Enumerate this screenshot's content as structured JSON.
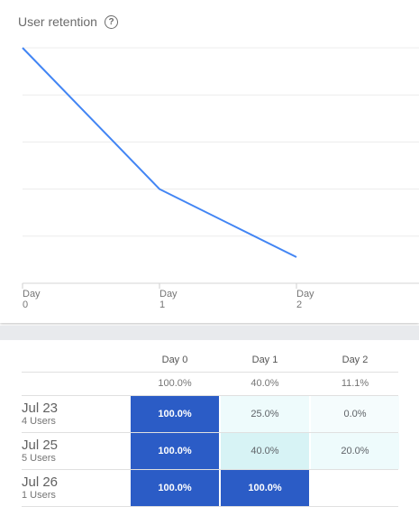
{
  "card": {
    "title": "User retention",
    "help_icon": "help-circle-icon"
  },
  "chart_data": {
    "type": "line",
    "title": "User retention",
    "x": [
      "Day 0",
      "Day 1",
      "Day 2"
    ],
    "x_tick_lines": [
      [
        "Day",
        "0"
      ],
      [
        "Day",
        "1"
      ],
      [
        "Day",
        "2"
      ]
    ],
    "values": [
      100,
      40,
      11.1
    ],
    "ylim": [
      0,
      100
    ],
    "line_color": "#4285f4",
    "grid": true
  },
  "table": {
    "headers": [
      "Day 0",
      "Day 1",
      "Day 2"
    ],
    "overall": [
      "100.0%",
      "40.0%",
      "11.1%"
    ],
    "rows": [
      {
        "date": "Jul 23",
        "users": "4 Users",
        "cells": [
          "100.0%",
          "25.0%",
          "0.0%"
        ],
        "levels": [
          1.0,
          0.25,
          0.0
        ]
      },
      {
        "date": "Jul 25",
        "users": "5 Users",
        "cells": [
          "100.0%",
          "40.0%",
          "20.0%"
        ],
        "levels": [
          1.0,
          0.4,
          0.2
        ]
      },
      {
        "date": "Jul 26",
        "users": "1 Users",
        "cells": [
          "100.0%",
          "100.0%",
          ""
        ],
        "levels": [
          1.0,
          1.0,
          null
        ]
      }
    ]
  },
  "colors": {
    "strong": "#2b5cc6",
    "mid": "#d7f3f5",
    "light": "#eefbfc",
    "lightest": "#f5fcfd"
  }
}
